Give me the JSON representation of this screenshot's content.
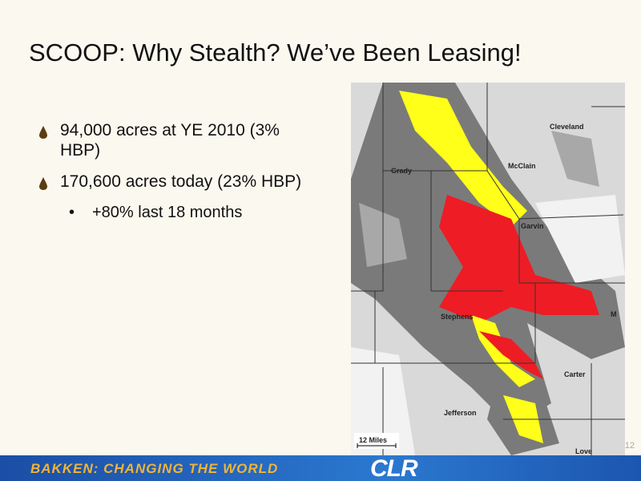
{
  "slide": {
    "title": "SCOOP: Why Stealth? We’ve Been Leasing!",
    "bullets": [
      "94,000 acres at YE 2010 (3% HBP)",
      "170,600 acres today (23% HBP)"
    ],
    "sub_bullets": [
      "+80% last 18 months"
    ],
    "page_number": 12
  },
  "map": {
    "counties": [
      "Cleveland",
      "Grady",
      "McClain",
      "Garvin",
      "Stephens",
      "Carter",
      "Jefferson",
      "Love",
      "M"
    ],
    "scale": "12 Miles"
  },
  "footer": {
    "tagline": "BAKKEN: CHANGING THE WORLD",
    "logo": "CLR"
  }
}
